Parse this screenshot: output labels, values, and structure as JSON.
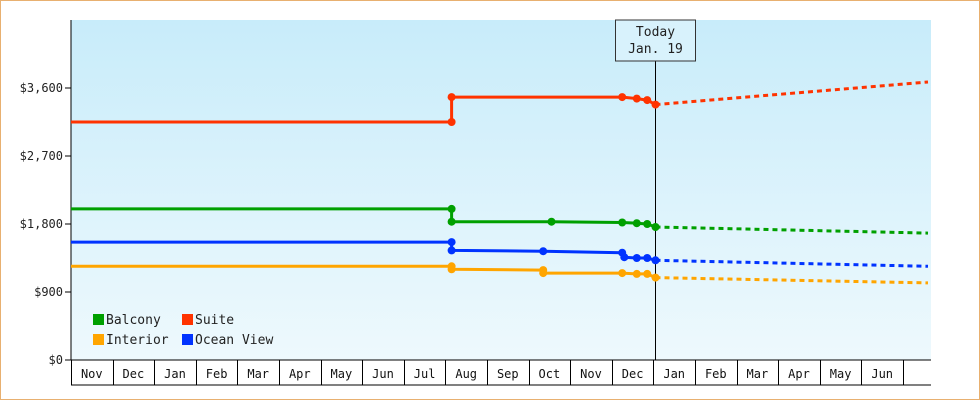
{
  "chart_data": {
    "type": "line",
    "title": "",
    "xlabel": "",
    "ylabel": "",
    "ylim": [
      0,
      4500
    ],
    "y_ticks": [
      0,
      900,
      1800,
      2700,
      3600
    ],
    "y_tick_labels": [
      "$0",
      "$900",
      "$1,800",
      "$2,700",
      "$3,600"
    ],
    "x_tick_labels": [
      "Nov",
      "Dec",
      "Jan",
      "Feb",
      "Mar",
      "Apr",
      "May",
      "Jun",
      "Jul",
      "Aug",
      "Sep",
      "Oct",
      "Nov",
      "Dec",
      "Jan",
      "Feb",
      "Mar",
      "Apr",
      "May",
      "Jun"
    ],
    "today_marker": {
      "line1": "Today",
      "line2": "Jan. 19",
      "month_index": 14.05
    },
    "grid": false,
    "legend_position": "bottom-left",
    "series": [
      {
        "name": "Suite",
        "color": "#ff3300",
        "values": [
          [
            0,
            3150
          ],
          [
            9.15,
            3150
          ],
          [
            9.15,
            3480
          ],
          [
            13.25,
            3480
          ],
          [
            13.6,
            3460
          ],
          [
            13.85,
            3440
          ],
          [
            14.05,
            3380
          ]
        ],
        "forecast": [
          [
            14.05,
            3380
          ],
          [
            20.6,
            3680
          ]
        ]
      },
      {
        "name": "Balcony",
        "color": "#00a000",
        "values": [
          [
            0,
            2000
          ],
          [
            9.15,
            2000
          ],
          [
            9.15,
            1830
          ],
          [
            11.55,
            1830
          ],
          [
            13.25,
            1820
          ],
          [
            13.6,
            1810
          ],
          [
            13.85,
            1800
          ],
          [
            14.05,
            1760
          ]
        ],
        "forecast": [
          [
            14.05,
            1760
          ],
          [
            20.6,
            1680
          ]
        ]
      },
      {
        "name": "Ocean View",
        "color": "#0033ff",
        "values": [
          [
            0,
            1560
          ],
          [
            9.15,
            1560
          ],
          [
            9.15,
            1450
          ],
          [
            11.35,
            1440
          ],
          [
            13.25,
            1420
          ],
          [
            13.3,
            1360
          ],
          [
            13.6,
            1350
          ],
          [
            13.85,
            1350
          ],
          [
            14.05,
            1320
          ]
        ],
        "forecast": [
          [
            14.05,
            1320
          ],
          [
            20.6,
            1240
          ]
        ]
      },
      {
        "name": "Interior",
        "color": "#ffa500",
        "values": [
          [
            0,
            1240
          ],
          [
            9.15,
            1240
          ],
          [
            9.15,
            1200
          ],
          [
            11.35,
            1190
          ],
          [
            11.35,
            1150
          ],
          [
            13.25,
            1150
          ],
          [
            13.6,
            1140
          ],
          [
            13.85,
            1140
          ],
          [
            14.05,
            1090
          ]
        ],
        "forecast": [
          [
            14.05,
            1090
          ],
          [
            20.6,
            1020
          ]
        ]
      }
    ],
    "legend": [
      {
        "name": "Balcony",
        "color": "#00a000"
      },
      {
        "name": "Suite",
        "color": "#ff3300"
      },
      {
        "name": "Interior",
        "color": "#ffa500"
      },
      {
        "name": "Ocean View",
        "color": "#0033ff"
      }
    ]
  }
}
